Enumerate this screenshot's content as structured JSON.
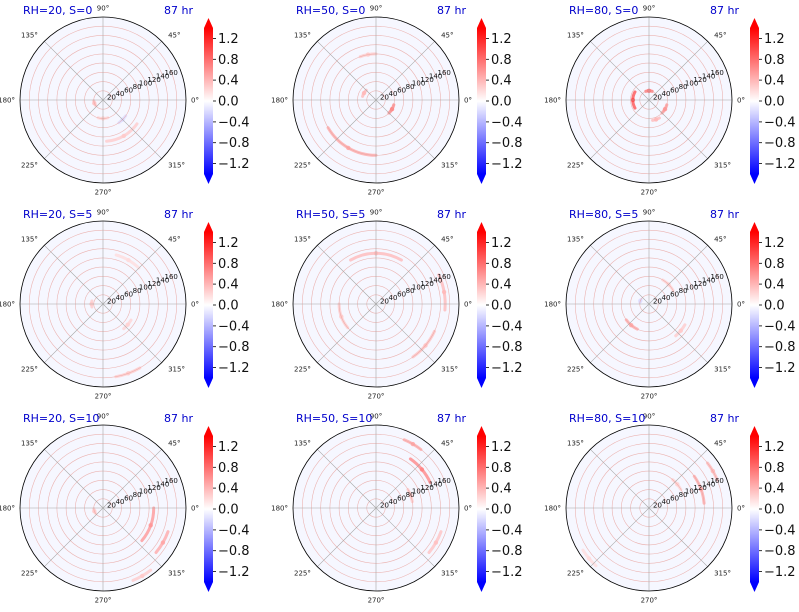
{
  "chart_data": {
    "type": "polar-contour-grid",
    "colormap": {
      "name": "bwr",
      "low": "#0000ff",
      "mid": "#ffffff",
      "high": "#ff0000",
      "vmin": -1.4,
      "vmax": 1.4
    },
    "angle_ticks": [
      "0°",
      "45°",
      "90°",
      "135°",
      "180°",
      "225°",
      "270°",
      "315°"
    ],
    "radial_ticks": [
      20,
      40,
      60,
      80,
      100,
      120,
      140,
      160
    ],
    "r_max": 180,
    "colorbar_ticks": [
      "1.2",
      "0.8",
      "0.4",
      "0.0",
      "−0.4",
      "−0.8",
      "−1.2"
    ],
    "colorbar_tick_values": [
      1.2,
      0.8,
      0.4,
      0.0,
      -0.4,
      -0.8,
      -1.2
    ],
    "panels": [
      {
        "title": "RH=20, S=0",
        "time": "87 hr",
        "features": [
          {
            "theta": 300,
            "r": 90,
            "value": 0.3,
            "spread": 50
          },
          {
            "theta": 200,
            "r": 20,
            "value": 0.35,
            "spread": 30
          },
          {
            "theta": 270,
            "r": 40,
            "value": 0.25,
            "spread": 30
          },
          {
            "theta": 315,
            "r": 60,
            "value": -0.2,
            "spread": 20
          }
        ]
      },
      {
        "title": "RH=50, S=0",
        "time": "87 hr",
        "features": [
          {
            "theta": 240,
            "r": 120,
            "value": 0.5,
            "spread": 60
          },
          {
            "theta": 330,
            "r": 40,
            "value": 0.7,
            "spread": 30
          },
          {
            "theta": 150,
            "r": 30,
            "value": 0.4,
            "spread": 30
          },
          {
            "theta": 100,
            "r": 100,
            "value": 0.3,
            "spread": 20
          }
        ]
      },
      {
        "title": "RH=80, S=0",
        "time": "87 hr",
        "features": [
          {
            "theta": 180,
            "r": 35,
            "value": 1.0,
            "spread": 60
          },
          {
            "theta": 90,
            "r": 20,
            "value": 0.8,
            "spread": 40
          },
          {
            "theta": 330,
            "r": 40,
            "value": 0.6,
            "spread": 30
          },
          {
            "theta": 290,
            "r": 45,
            "value": 0.4,
            "spread": 20
          }
        ]
      },
      {
        "title": "RH=20, S=5",
        "time": "87 hr",
        "features": [
          {
            "theta": 290,
            "r": 160,
            "value": 0.3,
            "spread": 20
          },
          {
            "theta": 320,
            "r": 70,
            "value": 0.25,
            "spread": 20
          },
          {
            "theta": 180,
            "r": 25,
            "value": 0.3,
            "spread": 30
          },
          {
            "theta": 60,
            "r": 110,
            "value": 0.2,
            "spread": 30
          }
        ]
      },
      {
        "title": "RH=50, S=5",
        "time": "87 hr",
        "features": [
          {
            "theta": 90,
            "r": 110,
            "value": 0.4,
            "spread": 60
          },
          {
            "theta": 10,
            "r": 150,
            "value": 0.4,
            "spread": 30
          },
          {
            "theta": 320,
            "r": 140,
            "value": 0.35,
            "spread": 30
          },
          {
            "theta": 200,
            "r": 80,
            "value": 0.3,
            "spread": 40
          }
        ]
      },
      {
        "title": "RH=80, S=5",
        "time": "87 hr",
        "features": [
          {
            "theta": 230,
            "r": 60,
            "value": 0.5,
            "spread": 30
          },
          {
            "theta": 160,
            "r": 20,
            "value": -0.2,
            "spread": 20
          },
          {
            "theta": 320,
            "r": 90,
            "value": 0.3,
            "spread": 20
          },
          {
            "theta": 45,
            "r": 60,
            "value": 0.25,
            "spread": 30
          }
        ]
      },
      {
        "title": "RH=20, S=10",
        "time": "87 hr",
        "features": [
          {
            "theta": 340,
            "r": 110,
            "value": 0.6,
            "spread": 40
          },
          {
            "theta": 330,
            "r": 150,
            "value": 0.5,
            "spread": 20
          },
          {
            "theta": 200,
            "r": 20,
            "value": 0.3,
            "spread": 30
          },
          {
            "theta": 300,
            "r": 170,
            "value": 0.3,
            "spread": 15
          }
        ]
      },
      {
        "title": "RH=50, S=10",
        "time": "87 hr",
        "features": [
          {
            "theta": 40,
            "r": 130,
            "value": 0.7,
            "spread": 30
          },
          {
            "theta": 60,
            "r": 160,
            "value": 0.5,
            "spread": 15
          },
          {
            "theta": 330,
            "r": 150,
            "value": 0.35,
            "spread": 20
          },
          {
            "theta": 20,
            "r": 80,
            "value": 0.3,
            "spread": 20
          }
        ]
      },
      {
        "title": "RH=80, S=10",
        "time": "87 hr",
        "features": [
          {
            "theta": 20,
            "r": 120,
            "value": 0.5,
            "spread": 30
          },
          {
            "theta": 30,
            "r": 160,
            "value": 0.4,
            "spread": 15
          },
          {
            "theta": 40,
            "r": 80,
            "value": 0.25,
            "spread": 20
          },
          {
            "theta": 220,
            "r": 170,
            "value": 0.2,
            "spread": 15
          }
        ]
      }
    ]
  }
}
